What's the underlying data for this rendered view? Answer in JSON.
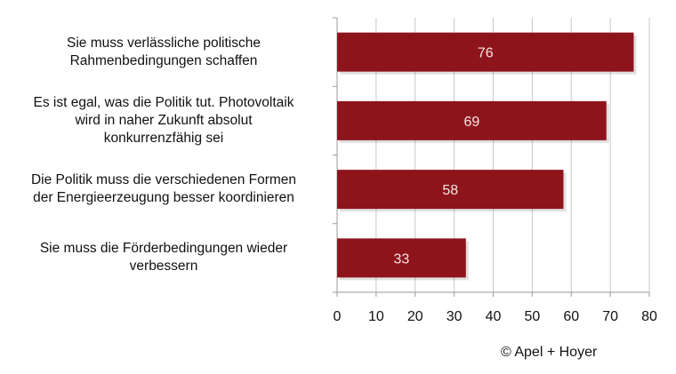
{
  "chart_data": {
    "type": "bar",
    "orientation": "horizontal",
    "categories": [
      "Sie muss verlässliche politische Rahmenbedingungen schaffen",
      "Es ist egal, was die Politik tut. Photovoltaik wird in naher Zukunft absolut konkurrenzfähig sei",
      "Die Politik muss die verschiedenen Formen der Energieerzeugung besser koordinieren",
      "Sie muss die Förderbedingungen wieder verbessern"
    ],
    "category_lines": [
      [
        "Sie muss verlässliche politische",
        "Rahmenbedingungen schaffen"
      ],
      [
        "Es ist egal, was die Politik tut. Photovoltaik",
        "wird in naher Zukunft absolut",
        "konkurrenzfähig sei"
      ],
      [
        "Die Politik muss die verschiedenen Formen",
        "der Energieerzeugung besser koordinieren"
      ],
      [
        "Sie muss die Förderbedingungen wieder",
        "verbessern"
      ]
    ],
    "values": [
      76,
      69,
      58,
      33
    ],
    "data_labels": [
      "76",
      "69",
      "58",
      "33"
    ],
    "xlim": [
      0,
      80
    ],
    "xticks": [
      "0",
      "10",
      "20",
      "30",
      "40",
      "50",
      "60",
      "70",
      "80"
    ],
    "grid": true,
    "bar_color": "#8e141c",
    "title": "",
    "xlabel": "",
    "ylabel": ""
  },
  "credit": "© Apel + Hoyer"
}
